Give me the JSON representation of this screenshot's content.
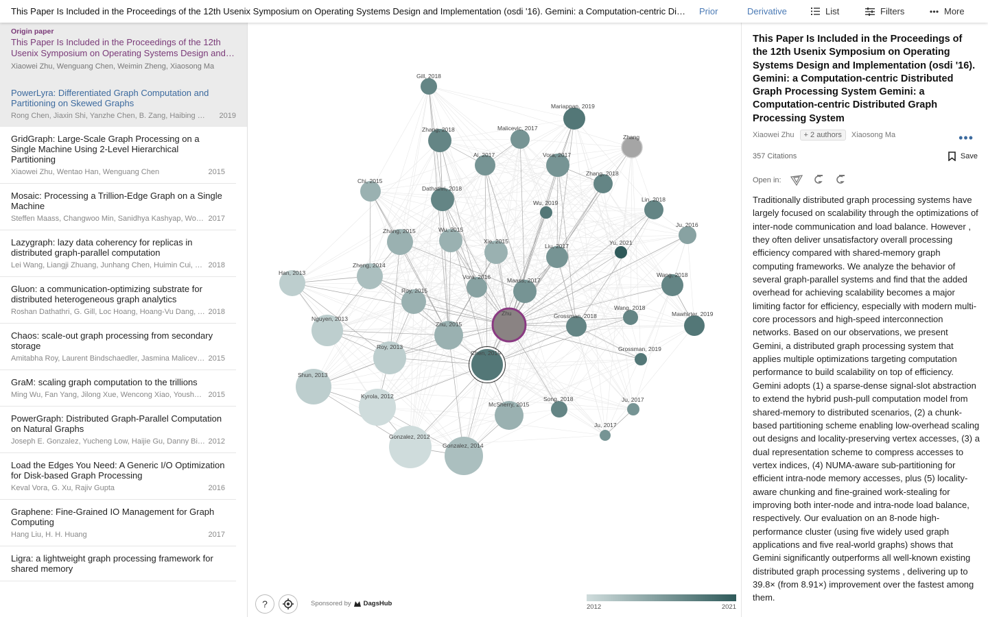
{
  "header": {
    "title": "This Paper Is Included in the Proceedings of the 12th Usenix Symposium on Operating Systems Design and Implementation (osdi '16). Gemini: a Computation-centric Distributed Graph Processing System",
    "prior": "Prior",
    "derivative": "Derivative",
    "list": "List",
    "filters": "Filters",
    "more": "More"
  },
  "origin": {
    "label": "Origin paper",
    "title": "This Paper Is Included in the Proceedings of the 12th Usenix Symposium on Operating Systems Design and…",
    "authors": "Xiaowei Zhu, Wenguang Chen, Weimin Zheng, Xiaosong Ma"
  },
  "papers": [
    {
      "title": "PowerLyra: Differentiated Graph Computation and Partitioning on Skewed Graphs",
      "authors": "Rong Chen, Jiaxin Shi, Yanzhe Chen, B. Zang, Haibing Guan,…",
      "year": "2019"
    },
    {
      "title": "GridGraph: Large-Scale Graph Processing on a Single Machine Using 2-Level Hierarchical Partitioning",
      "authors": "Xiaowei Zhu, Wentao Han, Wenguang Chen",
      "year": "2015"
    },
    {
      "title": "Mosaic: Processing a Trillion-Edge Graph on a Single Machine",
      "authors": "Steffen Maass, Changwoo Min, Sanidhya Kashyap, Woon-…",
      "year": "2017"
    },
    {
      "title": "Lazygraph: lazy data coherency for replicas in distributed graph-parallel computation",
      "authors": "Lei Wang, Liangji Zhuang, Junhang Chen, Huimin Cui, Fang…",
      "year": "2018"
    },
    {
      "title": "Gluon: a communication-optimizing substrate for distributed heterogeneous graph analytics",
      "authors": "Roshan Dathathri, G. Gill, Loc Hoang, Hoang-Vu Dang, Alex…",
      "year": "2018"
    },
    {
      "title": "Chaos: scale-out graph processing from secondary storage",
      "authors": "Amitabha Roy, Laurent Bindschaedler, Jasmina Malicevic, …",
      "year": "2015"
    },
    {
      "title": "GraM: scaling graph computation to the trillions",
      "authors": "Ming Wu, Fan Yang, Jilong Xue, Wencong Xiao, Youshan…",
      "year": "2015"
    },
    {
      "title": "PowerGraph: Distributed Graph-Parallel Computation on Natural Graphs",
      "authors": "Joseph E. Gonzalez, Yucheng Low, Haijie Gu, Danny Bickso…",
      "year": "2012"
    },
    {
      "title": "Load the Edges You Need: A Generic I/O Optimization for Disk-based Graph Processing",
      "authors": "Keval Vora, G. Xu, Rajiv Gupta",
      "year": "2016"
    },
    {
      "title": "Graphene: Fine-Grained IO Management for Graph Computing",
      "authors": "Hang Liu, H. H. Huang",
      "year": "2017"
    },
    {
      "title": "Ligra: a lightweight graph processing framework for shared memory",
      "authors": "",
      "year": ""
    }
  ],
  "graph": {
    "nodes": [
      {
        "label": "Gill, 2018",
        "year": 2018
      },
      {
        "label": "Mariappan, 2019",
        "year": 2019
      },
      {
        "label": "Zhang, 2018",
        "year": 2018
      },
      {
        "label": "Malicevic, 2017",
        "year": 2017
      },
      {
        "label": "Zhang",
        "year": null
      },
      {
        "label": "Ai, 2017",
        "year": 2017
      },
      {
        "label": "Vora, 2017",
        "year": 2017
      },
      {
        "label": "Chi, 2015",
        "year": 2015
      },
      {
        "label": "Dathathri, 2018",
        "year": 2018
      },
      {
        "label": "Zhang, 2018",
        "year": 2018
      },
      {
        "label": "Wu, 2019",
        "year": 2019
      },
      {
        "label": "Lin, 2018",
        "year": 2018
      },
      {
        "label": "Ju, 2016",
        "year": 2016
      },
      {
        "label": "Zhang, 2015",
        "year": 2015
      },
      {
        "label": "Wu, 2015",
        "year": 2015
      },
      {
        "label": "Xie, 2015",
        "year": 2015
      },
      {
        "label": "Liu, 2017",
        "year": 2017
      },
      {
        "label": "Yu, 2021",
        "year": 2021
      },
      {
        "label": "Han, 2013",
        "year": 2013
      },
      {
        "label": "Zheng, 2014",
        "year": 2014
      },
      {
        "label": "Vora, 2016",
        "year": 2016
      },
      {
        "label": "Maass, 2017",
        "year": 2017
      },
      {
        "label": "Wang, 2018",
        "year": 2018
      },
      {
        "label": "Roy, 2015",
        "year": 2015
      },
      {
        "label": "Nguyen, 2013",
        "year": 2013
      },
      {
        "label": "Zhu",
        "year": null
      },
      {
        "label": "Wang, 2018",
        "year": 2018
      },
      {
        "label": "Grossman, 2018",
        "year": 2018
      },
      {
        "label": "Mawhirter, 2019",
        "year": 2019
      },
      {
        "label": "Zhu, 2015",
        "year": 2015
      },
      {
        "label": "Roy, 2013",
        "year": 2013
      },
      {
        "label": "Chen, 2019",
        "year": 2019
      },
      {
        "label": "Grossman, 2019",
        "year": 2019
      },
      {
        "label": "Shun, 2013",
        "year": 2013
      },
      {
        "label": "Kyrola, 2012",
        "year": 2012
      },
      {
        "label": "McSherry, 2015",
        "year": 2015
      },
      {
        "label": "Song, 2018",
        "year": 2018
      },
      {
        "label": "Ju, 2017",
        "year": 2017
      },
      {
        "label": "Ju, 2017",
        "year": 2017
      },
      {
        "label": "Gonzalez, 2012",
        "year": 2012
      },
      {
        "label": "Gonzalez, 2014",
        "year": 2014
      }
    ],
    "sponsor_prefix": "Sponsored by",
    "sponsor_name": "DagsHub",
    "legend_start": "2012",
    "legend_end": "2021",
    "help": "?"
  },
  "detail": {
    "title": "This Paper Is Included in the Proceedings of the 12th Usenix Symposium on Operating Systems Design and Implementation (osdi '16). Gemini: a Computation-centric Distributed Graph Processing System Gemini: a Computation-centric Distributed Graph Processing System",
    "author1": "Xiaowei Zhu",
    "more_authors": "+ 2 authors",
    "author2": "Xiaosong Ma",
    "citations": "357 Citations",
    "save": "Save",
    "open_in": "Open in:",
    "abstract": "Traditionally distributed graph processing systems have largely focused on scalability through the optimizations of inter-node communication and load balance. However , they often deliver unsatisfactory overall processing efficiency compared with shared-memory graph computing frameworks. We analyze the behavior of several graph-parallel systems and find that the added overhead for achieving scalability becomes a major limiting factor for efficiency, especially with modern multi-core processors and high-speed interconnection networks. Based on our observations, we present Gemini, a distributed graph processing system that applies multiple optimizations targeting computation performance to build scalability on top of efficiency. Gemini adopts (1) a sparse-dense signal-slot abstraction to extend the hybrid push-pull computation model from shared-memory to distributed scenarios, (2) a chunk-based partitioning scheme enabling low-overhead scaling out designs and locality-preserving vertex accesses, (3) a dual representation scheme to compress accesses to vertex indices, (4) NUMA-aware sub-partitioning for efficient intra-node memory accesses, plus (5) locality-aware chunking and fine-grained work-stealing for improving both inter-node and intra-node load balance, respectively. Our evaluation on an 8-node high-performance cluster (using five widely used graph applications and five real-world graphs) shows that Gemini significantly outperforms all well-known existing distributed graph processing systems , delivering up to 39.8× (from 8.91×) improvement over the fastest among them."
  },
  "colors": {
    "accent_blue": "#4a7ab5",
    "origin_purple": "#7a3a78",
    "node_dark": "#2f5a5a",
    "node_light": "#cfdcdc"
  }
}
